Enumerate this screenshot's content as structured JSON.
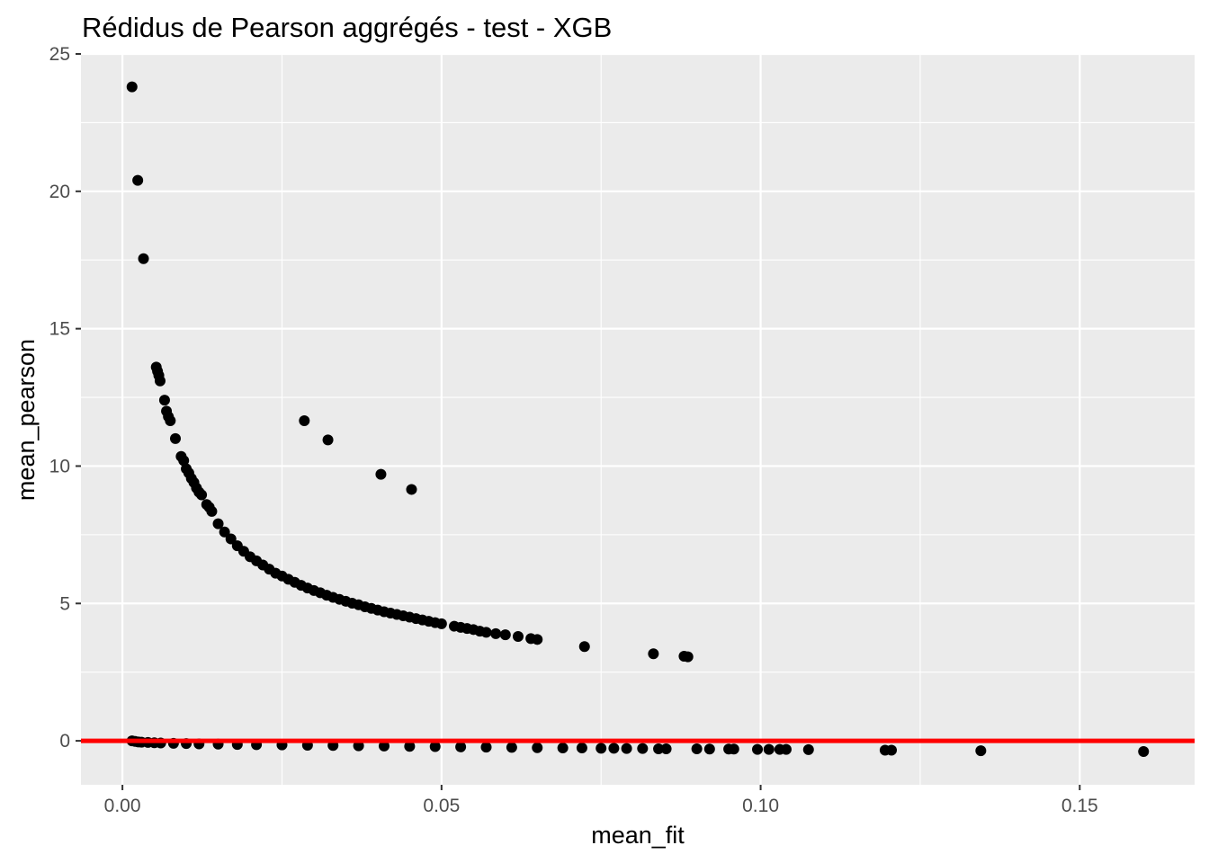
{
  "chart_data": {
    "type": "scatter",
    "title": "Rédidus de Pearson aggrégés - test - XGB",
    "xlabel": "mean_fit",
    "ylabel": "mean_pearson",
    "xlim": [
      -0.0065,
      0.168
    ],
    "ylim": [
      -1.6,
      25.0
    ],
    "x_ticks": [
      {
        "value": 0.0,
        "label": "0.00"
      },
      {
        "value": 0.05,
        "label": "0.05"
      },
      {
        "value": 0.1,
        "label": "0.10"
      },
      {
        "value": 0.15,
        "label": "0.15"
      }
    ],
    "y_ticks": [
      {
        "value": 0,
        "label": "0"
      },
      {
        "value": 5,
        "label": "5"
      },
      {
        "value": 10,
        "label": "10"
      },
      {
        "value": 15,
        "label": "15"
      },
      {
        "value": 20,
        "label": "20"
      },
      {
        "value": 25,
        "label": "25"
      }
    ],
    "grid": true,
    "background": "#ebebeb",
    "grid_color": "#ffffff",
    "point_color": "#000000",
    "reference_line": {
      "y": 0,
      "color": "#ff0000"
    },
    "series": [
      {
        "points": [
          [
            0.0015,
            23.8
          ],
          [
            0.0024,
            20.4
          ],
          [
            0.0033,
            17.55
          ],
          [
            0.0053,
            13.6
          ],
          [
            0.0055,
            13.45
          ],
          [
            0.0057,
            13.3
          ],
          [
            0.0059,
            13.1
          ],
          [
            0.0066,
            12.4
          ],
          [
            0.0069,
            12.0
          ],
          [
            0.0072,
            11.8
          ],
          [
            0.0075,
            11.65
          ],
          [
            0.0083,
            11.0
          ],
          [
            0.0092,
            10.35
          ],
          [
            0.0096,
            10.2
          ],
          [
            0.01,
            9.9
          ],
          [
            0.0104,
            9.75
          ],
          [
            0.0108,
            9.55
          ],
          [
            0.0112,
            9.4
          ],
          [
            0.0116,
            9.2
          ],
          [
            0.012,
            9.05
          ],
          [
            0.0124,
            8.95
          ],
          [
            0.0132,
            8.6
          ],
          [
            0.0136,
            8.5
          ],
          [
            0.014,
            8.35
          ],
          [
            0.015,
            7.9
          ],
          [
            0.016,
            7.6
          ],
          [
            0.017,
            7.35
          ],
          [
            0.018,
            7.1
          ],
          [
            0.019,
            6.9
          ],
          [
            0.02,
            6.7
          ],
          [
            0.021,
            6.55
          ],
          [
            0.022,
            6.4
          ],
          [
            0.023,
            6.25
          ],
          [
            0.024,
            6.1
          ],
          [
            0.025,
            6.0
          ],
          [
            0.026,
            5.88
          ],
          [
            0.027,
            5.77
          ],
          [
            0.028,
            5.66
          ],
          [
            0.029,
            5.56
          ],
          [
            0.03,
            5.47
          ],
          [
            0.031,
            5.39
          ],
          [
            0.032,
            5.3
          ],
          [
            0.033,
            5.22
          ],
          [
            0.034,
            5.15
          ],
          [
            0.035,
            5.08
          ],
          [
            0.036,
            5.01
          ],
          [
            0.037,
            4.95
          ],
          [
            0.038,
            4.88
          ],
          [
            0.039,
            4.82
          ],
          [
            0.04,
            4.76
          ],
          [
            0.041,
            4.7
          ],
          [
            0.042,
            4.65
          ],
          [
            0.043,
            4.6
          ],
          [
            0.044,
            4.55
          ],
          [
            0.045,
            4.5
          ],
          [
            0.046,
            4.45
          ],
          [
            0.047,
            4.4
          ],
          [
            0.048,
            4.35
          ],
          [
            0.049,
            4.3
          ],
          [
            0.05,
            4.26
          ],
          [
            0.052,
            4.17
          ],
          [
            0.053,
            4.13
          ],
          [
            0.054,
            4.09
          ],
          [
            0.055,
            4.05
          ],
          [
            0.056,
            3.99
          ],
          [
            0.057,
            3.95
          ],
          [
            0.0585,
            3.9
          ],
          [
            0.06,
            3.86
          ],
          [
            0.062,
            3.8
          ],
          [
            0.064,
            3.72
          ],
          [
            0.065,
            3.69
          ],
          [
            0.0724,
            3.43
          ],
          [
            0.0832,
            3.17
          ],
          [
            0.088,
            3.08
          ],
          [
            0.0886,
            3.06
          ],
          [
            0.0285,
            11.65
          ],
          [
            0.0322,
            10.95
          ],
          [
            0.0405,
            9.7
          ],
          [
            0.0453,
            9.15
          ],
          [
            0.0015,
            0.0
          ],
          [
            0.002,
            -0.02
          ],
          [
            0.0025,
            -0.04
          ],
          [
            0.003,
            -0.05
          ],
          [
            0.004,
            -0.06
          ],
          [
            0.005,
            -0.07
          ],
          [
            0.006,
            -0.08
          ],
          [
            0.008,
            -0.09
          ],
          [
            0.01,
            -0.1
          ],
          [
            0.012,
            -0.11
          ],
          [
            0.015,
            -0.12
          ],
          [
            0.018,
            -0.13
          ],
          [
            0.021,
            -0.14
          ],
          [
            0.025,
            -0.15
          ],
          [
            0.029,
            -0.16
          ],
          [
            0.033,
            -0.17
          ],
          [
            0.037,
            -0.18
          ],
          [
            0.041,
            -0.19
          ],
          [
            0.045,
            -0.2
          ],
          [
            0.049,
            -0.21
          ],
          [
            0.053,
            -0.22
          ],
          [
            0.057,
            -0.23
          ],
          [
            0.061,
            -0.24
          ],
          [
            0.065,
            -0.25
          ],
          [
            0.069,
            -0.26
          ],
          [
            0.072,
            -0.26
          ],
          [
            0.075,
            -0.27
          ],
          [
            0.077,
            -0.27
          ],
          [
            0.079,
            -0.28
          ],
          [
            0.0815,
            -0.28
          ],
          [
            0.084,
            -0.29
          ],
          [
            0.0852,
            -0.29
          ],
          [
            0.09,
            -0.29
          ],
          [
            0.092,
            -0.3
          ],
          [
            0.095,
            -0.3
          ],
          [
            0.0958,
            -0.3
          ],
          [
            0.0995,
            -0.31
          ],
          [
            0.1013,
            -0.31
          ],
          [
            0.103,
            -0.31
          ],
          [
            0.104,
            -0.31
          ],
          [
            0.1075,
            -0.32
          ],
          [
            0.1195,
            -0.34
          ],
          [
            0.1205,
            -0.34
          ],
          [
            0.1345,
            -0.36
          ],
          [
            0.16,
            -0.39
          ]
        ]
      }
    ]
  }
}
